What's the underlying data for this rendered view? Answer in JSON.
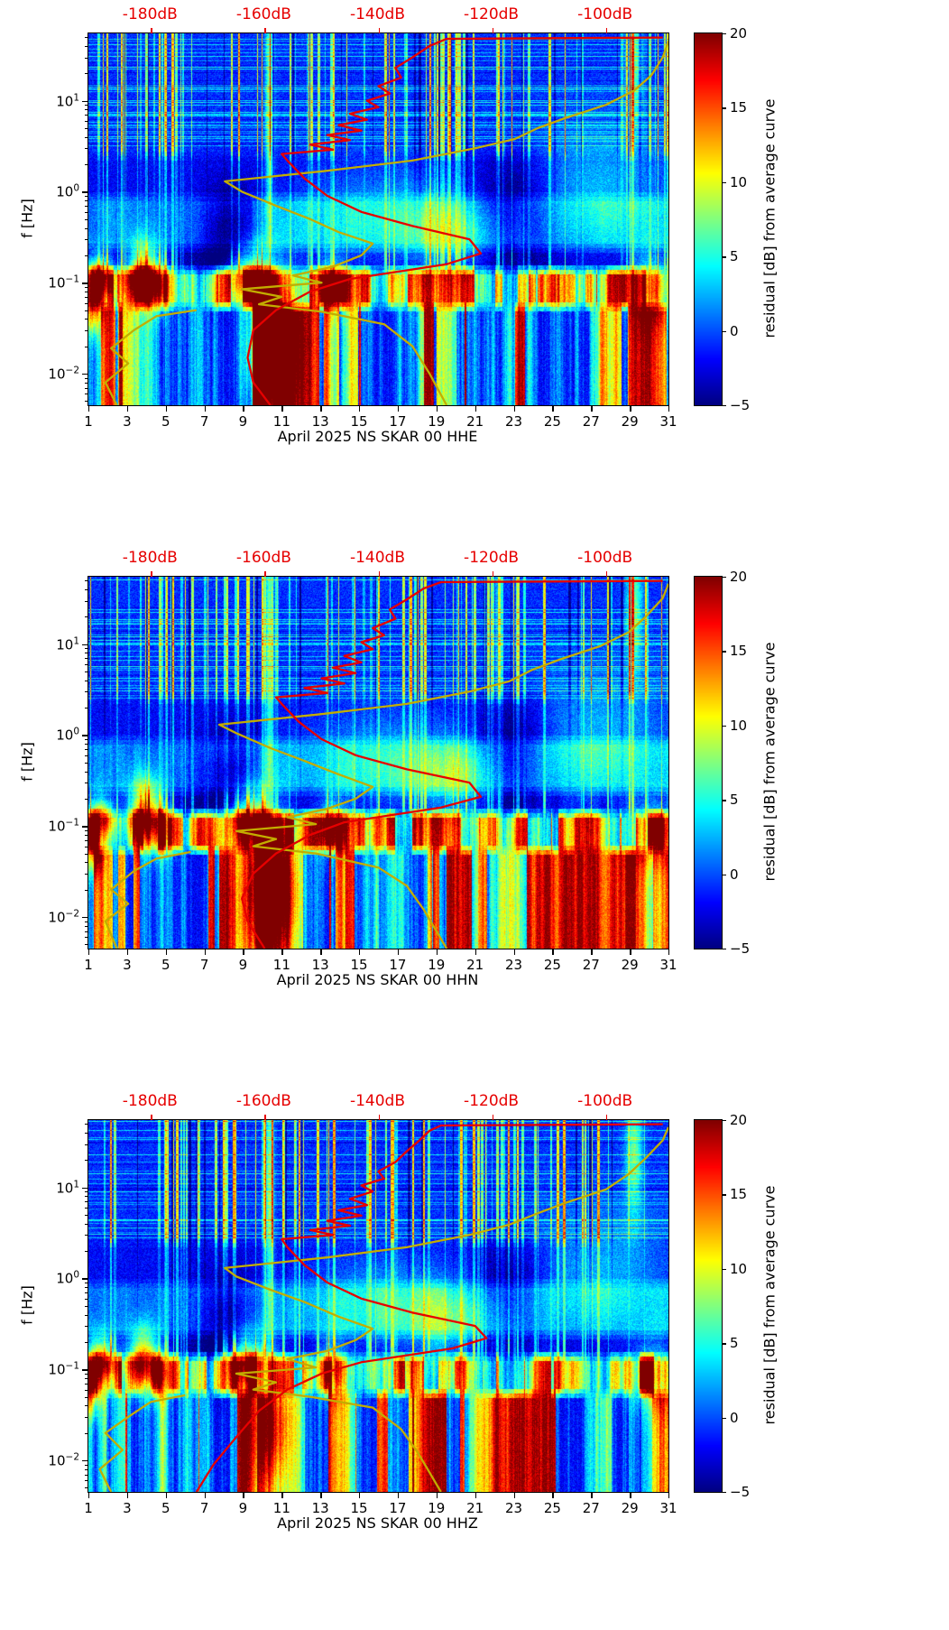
{
  "figure": {
    "type": "seismic-noise-spectrograms",
    "panel_count": 3
  },
  "panels_shared": {
    "ylabel": "f [Hz]",
    "x_tick_labels": [
      1,
      3,
      5,
      7,
      9,
      11,
      13,
      15,
      17,
      19,
      21,
      23,
      25,
      27,
      29,
      31
    ],
    "y_ticks": [
      {
        "f": 10,
        "base": "10",
        "exp": "1"
      },
      {
        "f": 1,
        "base": "10",
        "exp": "0"
      },
      {
        "f": 0.1,
        "base": "10",
        "exp": "−1"
      },
      {
        "f": 0.01,
        "base": "10",
        "exp": "−2"
      }
    ],
    "top_ticks": [
      {
        "db": -180,
        "label": "-180dB"
      },
      {
        "db": -160,
        "label": "-160dB"
      },
      {
        "db": -140,
        "label": "-140dB"
      },
      {
        "db": -120,
        "label": "-120dB"
      },
      {
        "db": -100,
        "label": "-100dB"
      }
    ],
    "colorbar": {
      "label": "residual [dB] from average curve",
      "tick_values": [
        20,
        15,
        10,
        5,
        0,
        -5
      ],
      "tick_labels": [
        "20",
        "15",
        "10",
        "5",
        "0",
        "−5"
      ],
      "vmin": -5,
      "vmax": 20
    },
    "f_range": [
      0.0045,
      55
    ],
    "day_range": [
      1,
      31
    ],
    "db_range": [
      -191,
      -89
    ],
    "colors": {
      "accent_red": "#e60000",
      "curve_red": "#e60000",
      "curve_yellow": "#c3ad00",
      "axis": "#000000"
    }
  },
  "chart_data": [
    {
      "type": "heatmap",
      "channel": "HHE",
      "xlabel": "April 2025 NS SKAR 00 HHE",
      "seed": 11,
      "red_curve": [
        [
          -159,
          0.0045
        ],
        [
          -162,
          0.008
        ],
        [
          -163,
          0.015
        ],
        [
          -162,
          0.03
        ],
        [
          -158,
          0.05
        ],
        [
          -152,
          0.08
        ],
        [
          -145,
          0.11
        ],
        [
          -128,
          0.16
        ],
        [
          -122,
          0.21
        ],
        [
          -124,
          0.3
        ],
        [
          -134,
          0.42
        ],
        [
          -143,
          0.6
        ],
        [
          -149,
          0.9
        ],
        [
          -153,
          1.4
        ],
        [
          -156,
          2.2
        ],
        [
          -157,
          2.6
        ],
        [
          -148,
          2.9
        ],
        [
          -152,
          3.3
        ],
        [
          -145,
          3.7
        ],
        [
          -149,
          4.2
        ],
        [
          -143,
          4.7
        ],
        [
          -147,
          5.4
        ],
        [
          -142,
          6.2
        ],
        [
          -145,
          7.2
        ],
        [
          -140,
          8.5
        ],
        [
          -142,
          10
        ],
        [
          -138,
          12
        ],
        [
          -140,
          14.5
        ],
        [
          -136,
          18
        ],
        [
          -137,
          23
        ],
        [
          -134,
          30
        ],
        [
          -131,
          40
        ],
        [
          -128,
          48
        ],
        [
          -90,
          49.5
        ]
      ],
      "yellow_curve": [
        [
          -128,
          0.0045
        ],
        [
          -131,
          0.01
        ],
        [
          -134,
          0.02
        ],
        [
          -139,
          0.035
        ],
        [
          -150,
          0.048
        ],
        [
          -161,
          0.058
        ],
        [
          -157,
          0.07
        ],
        [
          -164,
          0.085
        ],
        [
          -150,
          0.1
        ],
        [
          -155,
          0.12
        ],
        [
          -148,
          0.15
        ],
        [
          -143,
          0.2
        ],
        [
          -141,
          0.27
        ],
        [
          -147,
          0.36
        ],
        [
          -152,
          0.5
        ],
        [
          -158,
          0.7
        ],
        [
          -164,
          1.0
        ],
        [
          -167,
          1.3
        ],
        [
          -149,
          1.7
        ],
        [
          -134,
          2.2
        ],
        [
          -123,
          3.0
        ],
        [
          -116,
          3.8
        ],
        [
          -112,
          5.0
        ],
        [
          -107,
          6.5
        ],
        [
          -100,
          9.0
        ],
        [
          -95,
          13
        ],
        [
          -92,
          19
        ],
        [
          -90,
          30
        ],
        [
          -89,
          45
        ]
      ],
      "yellow_curve_segment": [
        [
          -186,
          0.0045
        ],
        [
          -188,
          0.008
        ],
        [
          -184,
          0.013
        ],
        [
          -187,
          0.019
        ],
        [
          -183,
          0.03
        ],
        [
          -179,
          0.043
        ],
        [
          -172,
          0.05
        ]
      ],
      "blobs": [
        [
          1.5,
          0.12,
          15,
          0.5,
          0.16
        ],
        [
          1.2,
          0.055,
          13,
          0.35,
          0.2
        ],
        [
          3.8,
          0.13,
          17,
          0.55,
          0.22
        ],
        [
          4.7,
          0.09,
          9,
          0.4,
          0.18
        ],
        [
          9.2,
          0.13,
          13,
          0.8,
          0.2
        ],
        [
          10.4,
          0.022,
          16,
          0.8,
          0.5
        ],
        [
          13.6,
          0.1,
          9,
          0.5,
          0.2
        ],
        [
          8.3,
          0.3,
          -6,
          1.0,
          0.4
        ],
        [
          22.8,
          0.6,
          -5,
          1.3,
          0.45
        ],
        [
          16.5,
          0.5,
          4.5,
          3.0,
          0.4
        ],
        [
          27.5,
          1.1,
          4.5,
          2.6,
          0.5
        ],
        [
          20.0,
          0.33,
          5,
          1.6,
          0.28
        ],
        [
          30.2,
          0.09,
          8,
          0.8,
          0.25
        ],
        [
          10.35,
          8,
          9,
          0.15,
          1.1
        ],
        [
          29.2,
          25,
          8,
          0.3,
          0.5
        ]
      ]
    },
    {
      "type": "heatmap",
      "channel": "HHN",
      "xlabel": "April 2025 NS SKAR 00 HHN",
      "seed": 47,
      "red_curve": [
        [
          -160,
          0.0045
        ],
        [
          -163,
          0.009
        ],
        [
          -164,
          0.016
        ],
        [
          -162,
          0.03
        ],
        [
          -158,
          0.05
        ],
        [
          -152,
          0.08
        ],
        [
          -146,
          0.11
        ],
        [
          -129,
          0.16
        ],
        [
          -122,
          0.21
        ],
        [
          -124,
          0.3
        ],
        [
          -135,
          0.42
        ],
        [
          -144,
          0.6
        ],
        [
          -150,
          0.9
        ],
        [
          -154,
          1.4
        ],
        [
          -157,
          2.2
        ],
        [
          -158,
          2.6
        ],
        [
          -149,
          2.9
        ],
        [
          -153,
          3.3
        ],
        [
          -146,
          3.7
        ],
        [
          -150,
          4.2
        ],
        [
          -144,
          4.8
        ],
        [
          -148,
          5.5
        ],
        [
          -143,
          6.3
        ],
        [
          -146,
          7.4
        ],
        [
          -141,
          8.8
        ],
        [
          -143,
          10.5
        ],
        [
          -139,
          12.5
        ],
        [
          -141,
          15
        ],
        [
          -137,
          19
        ],
        [
          -138,
          24
        ],
        [
          -135,
          31
        ],
        [
          -132,
          41
        ],
        [
          -129,
          48
        ],
        [
          -90,
          49.5
        ]
      ],
      "yellow_curve": [
        [
          -128,
          0.0045
        ],
        [
          -132,
          0.012
        ],
        [
          -135,
          0.022
        ],
        [
          -140,
          0.035
        ],
        [
          -151,
          0.05
        ],
        [
          -162,
          0.06
        ],
        [
          -158,
          0.072
        ],
        [
          -165,
          0.088
        ],
        [
          -151,
          0.105
        ],
        [
          -156,
          0.125
        ],
        [
          -149,
          0.155
        ],
        [
          -144,
          0.2
        ],
        [
          -141,
          0.27
        ],
        [
          -147,
          0.37
        ],
        [
          -153,
          0.52
        ],
        [
          -159,
          0.72
        ],
        [
          -165,
          1.05
        ],
        [
          -168,
          1.3
        ],
        [
          -150,
          1.7
        ],
        [
          -135,
          2.2
        ],
        [
          -124,
          3.0
        ],
        [
          -117,
          3.9
        ],
        [
          -113,
          5.2
        ],
        [
          -108,
          6.8
        ],
        [
          -101,
          9.5
        ],
        [
          -96,
          13.5
        ],
        [
          -93,
          20
        ],
        [
          -90,
          32
        ],
        [
          -89,
          46
        ]
      ],
      "yellow_curve_segment": [
        [
          -186,
          0.0045
        ],
        [
          -188,
          0.009
        ],
        [
          -184,
          0.014
        ],
        [
          -187,
          0.02
        ],
        [
          -183,
          0.032
        ],
        [
          -179,
          0.044
        ],
        [
          -173,
          0.052
        ]
      ],
      "blobs": [
        [
          1.6,
          0.13,
          14,
          0.5,
          0.16
        ],
        [
          1.2,
          0.06,
          13,
          0.35,
          0.2
        ],
        [
          3.9,
          0.14,
          18,
          0.6,
          0.24
        ],
        [
          4.8,
          0.09,
          9,
          0.4,
          0.18
        ],
        [
          9.3,
          0.13,
          14,
          0.8,
          0.2
        ],
        [
          10.4,
          0.02,
          17,
          0.85,
          0.5
        ],
        [
          13.6,
          0.1,
          9,
          0.5,
          0.2
        ],
        [
          8.3,
          0.3,
          -6,
          1.0,
          0.4
        ],
        [
          22.8,
          0.6,
          -5,
          1.3,
          0.45
        ],
        [
          16.5,
          0.5,
          4.5,
          3.0,
          0.4
        ],
        [
          27.5,
          1.1,
          4.5,
          2.6,
          0.5
        ],
        [
          20.0,
          0.33,
          5,
          1.6,
          0.28
        ],
        [
          30.2,
          0.09,
          8,
          0.8,
          0.25
        ],
        [
          10.35,
          8,
          9,
          0.15,
          1.1
        ],
        [
          29.2,
          25,
          8,
          0.3,
          0.5
        ]
      ]
    },
    {
      "type": "heatmap",
      "channel": "HHZ",
      "xlabel": "April 2025 NS SKAR 00 HHZ",
      "seed": 83,
      "red_curve": [
        [
          -172,
          0.0045
        ],
        [
          -169,
          0.009
        ],
        [
          -165,
          0.018
        ],
        [
          -161,
          0.035
        ],
        [
          -156,
          0.06
        ],
        [
          -150,
          0.09
        ],
        [
          -143,
          0.12
        ],
        [
          -127,
          0.17
        ],
        [
          -121,
          0.22
        ],
        [
          -123,
          0.3
        ],
        [
          -134,
          0.42
        ],
        [
          -143,
          0.6
        ],
        [
          -149,
          0.9
        ],
        [
          -153,
          1.4
        ],
        [
          -156,
          2.2
        ],
        [
          -157,
          2.7
        ],
        [
          -148,
          3.0
        ],
        [
          -152,
          3.4
        ],
        [
          -145,
          3.8
        ],
        [
          -149,
          4.3
        ],
        [
          -143,
          4.9
        ],
        [
          -147,
          5.6
        ],
        [
          -142,
          6.4
        ],
        [
          -145,
          7.5
        ],
        [
          -141,
          9
        ],
        [
          -143,
          10.5
        ],
        [
          -139,
          12.5
        ],
        [
          -140,
          15
        ],
        [
          -137,
          19
        ],
        [
          -135,
          25
        ],
        [
          -133,
          32
        ],
        [
          -131,
          42
        ],
        [
          -129,
          48
        ],
        [
          -90,
          49.5
        ]
      ],
      "yellow_curve": [
        [
          -129,
          0.0045
        ],
        [
          -133,
          0.012
        ],
        [
          -136,
          0.022
        ],
        [
          -141,
          0.038
        ],
        [
          -152,
          0.05
        ],
        [
          -162,
          0.06
        ],
        [
          -158,
          0.072
        ],
        [
          -165,
          0.09
        ],
        [
          -151,
          0.105
        ],
        [
          -156,
          0.13
        ],
        [
          -149,
          0.16
        ],
        [
          -144,
          0.21
        ],
        [
          -141,
          0.28
        ],
        [
          -147,
          0.38
        ],
        [
          -153,
          0.55
        ],
        [
          -159,
          0.75
        ],
        [
          -165,
          1.05
        ],
        [
          -167,
          1.3
        ],
        [
          -149,
          1.7
        ],
        [
          -135,
          2.2
        ],
        [
          -124,
          3.0
        ],
        [
          -117,
          3.9
        ],
        [
          -112,
          5.2
        ],
        [
          -107,
          6.8
        ],
        [
          -100,
          9.5
        ],
        [
          -96,
          14
        ],
        [
          -93,
          21
        ],
        [
          -90,
          33
        ],
        [
          -89,
          46
        ]
      ],
      "yellow_curve_segment": [
        [
          -187,
          0.0045
        ],
        [
          -189,
          0.008
        ],
        [
          -185,
          0.013
        ],
        [
          -188,
          0.02
        ],
        [
          -184,
          0.03
        ],
        [
          -180,
          0.044
        ],
        [
          -174,
          0.052
        ]
      ],
      "blobs": [
        [
          1.6,
          0.13,
          16,
          0.55,
          0.18
        ],
        [
          1.1,
          0.06,
          12,
          0.35,
          0.2
        ],
        [
          3.8,
          0.13,
          17,
          0.55,
          0.22
        ],
        [
          4.7,
          0.09,
          9,
          0.4,
          0.18
        ],
        [
          9.2,
          0.13,
          14,
          0.8,
          0.2
        ],
        [
          10.4,
          0.025,
          10,
          0.7,
          0.45
        ],
        [
          13.6,
          0.1,
          9,
          0.5,
          0.2
        ],
        [
          8.3,
          0.3,
          -6,
          1.0,
          0.4
        ],
        [
          22.6,
          0.6,
          -5,
          1.3,
          0.45
        ],
        [
          16.5,
          0.5,
          4.5,
          3.0,
          0.4
        ],
        [
          27.5,
          1.1,
          4.5,
          2.6,
          0.5
        ],
        [
          20.0,
          0.33,
          5,
          1.6,
          0.28
        ],
        [
          30.2,
          0.09,
          8,
          0.8,
          0.25
        ],
        [
          10.35,
          8,
          9,
          0.15,
          1.1
        ],
        [
          29.2,
          25,
          8,
          0.3,
          0.5
        ]
      ]
    }
  ]
}
